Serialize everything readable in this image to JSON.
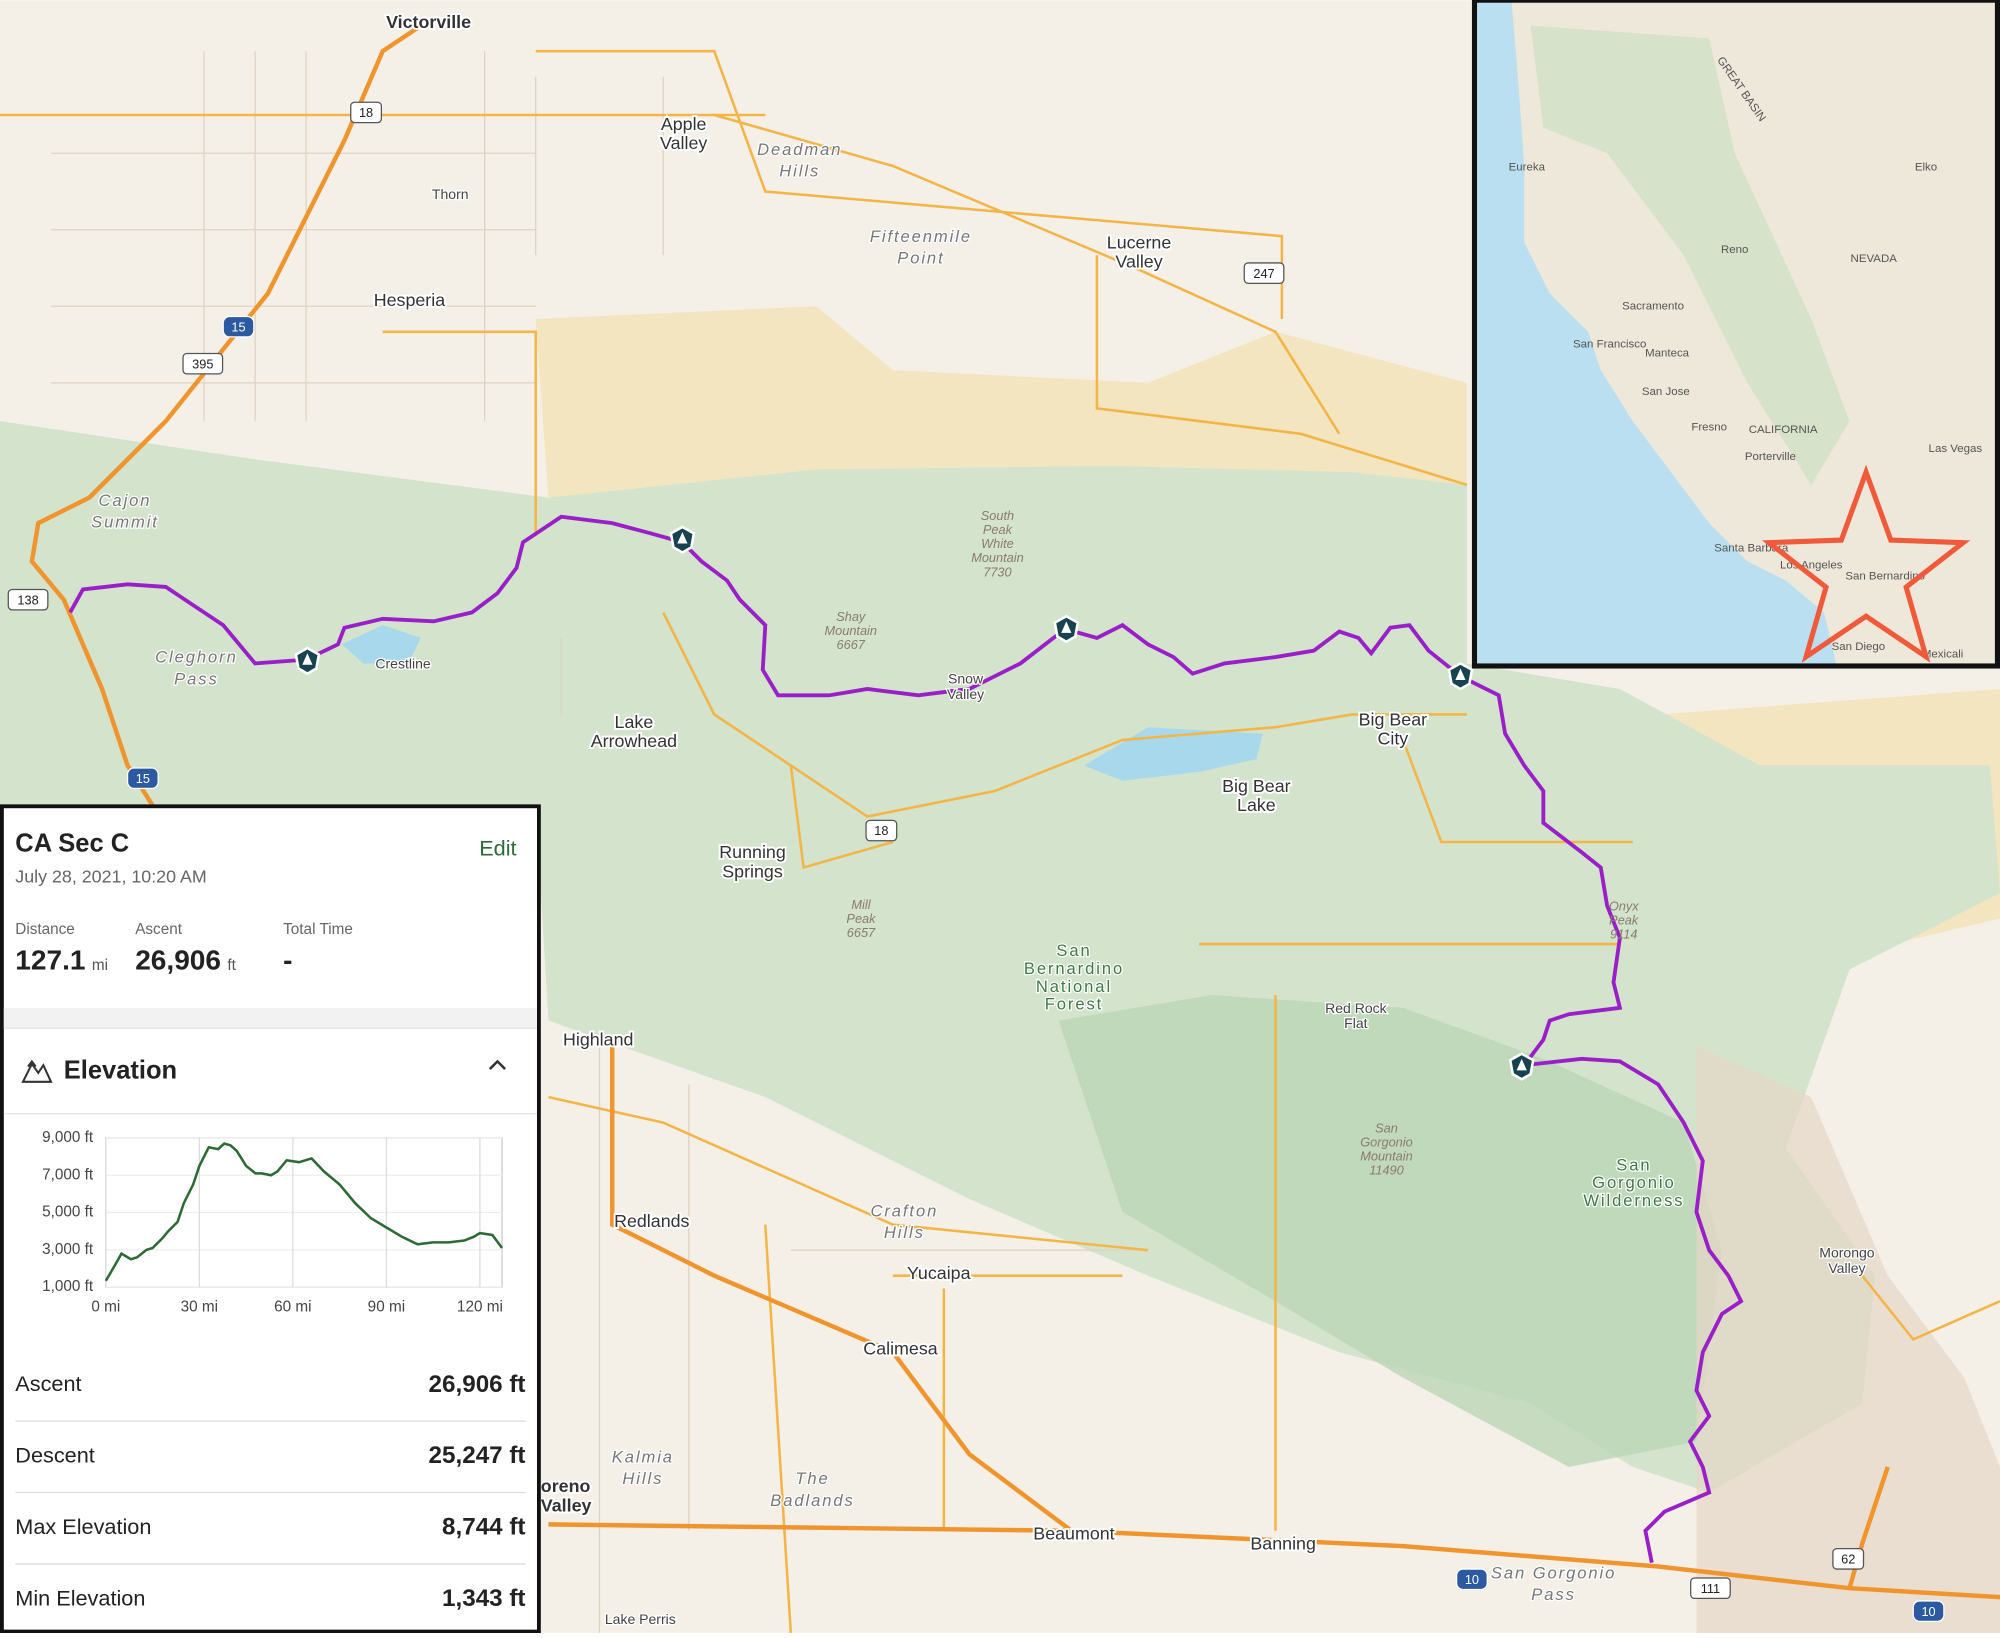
{
  "map": {
    "labels": [
      [
        "Victorville"
      ],
      [
        "Apple",
        "Valley"
      ],
      [
        "Deadman",
        "Hills"
      ],
      [
        "Thorn"
      ],
      [
        "Hesperia"
      ],
      [
        "Fifteenmile",
        "Point"
      ],
      [
        "Lucerne",
        "Valley"
      ],
      [
        "Cajon",
        "Summit"
      ],
      [
        "Cleghorn",
        "Pass"
      ],
      [
        "Crestline"
      ],
      [
        "Lake",
        "Arrowhead"
      ],
      [
        "Snow",
        "Valley"
      ],
      [
        "South",
        "Peak",
        "White",
        "Mountain",
        "7730"
      ],
      [
        "Shay",
        "Mountain",
        "6667"
      ],
      [
        "Big Bear",
        "City"
      ],
      [
        "Big Bear",
        "Lake"
      ],
      [
        "Running",
        "Springs"
      ],
      [
        "Mill",
        "Peak",
        "6657"
      ],
      [
        "San",
        "Bernardino",
        "National",
        "Forest"
      ],
      [
        "Onyx",
        "Peak",
        "9114"
      ],
      [
        "Red Rock",
        "Flat"
      ],
      [
        "Highland"
      ],
      [
        "Redlands"
      ],
      [
        "Crafton",
        "Hills"
      ],
      [
        "Yucaipa"
      ],
      [
        "Calimesa"
      ],
      [
        "San",
        "Gorgonio",
        "Mountain",
        "11490"
      ],
      [
        "San",
        "Gorgonio",
        "Wilderness"
      ],
      [
        "Morongo",
        "Valley"
      ],
      [
        "Kalmia",
        "Hills"
      ],
      [
        "The",
        "Badlands"
      ],
      [
        "oreno",
        "Valley"
      ],
      [
        "Beaumont"
      ],
      [
        "Banning"
      ],
      [
        "San Gorgonio",
        "Pass"
      ],
      [
        "Lake Perris"
      ]
    ],
    "route_shields": [
      "18",
      "395",
      "15",
      "138",
      "247",
      "18",
      "15",
      "10",
      "111",
      "62",
      "10"
    ],
    "inset": {
      "labels": [
        "Eureka",
        "Sacramento",
        "San Francisco",
        "Manteca",
        "San Jose",
        "Fresno",
        "CALIFORNIA",
        "Porterville",
        "Reno",
        "NEVADA",
        "Elko",
        "Las Vegas",
        "Santa Barbara",
        "Los Angeles",
        "San Bernardino",
        "San Diego",
        "Mexicali",
        "GREAT BASIN"
      ]
    }
  },
  "panel": {
    "title": "CA Sec C",
    "edit": "Edit",
    "date": "July 28, 2021, 10:20 AM",
    "summary": [
      {
        "label": "Distance",
        "value": "127.1",
        "unit": "mi"
      },
      {
        "label": "Ascent",
        "value": "26,906",
        "unit": "ft"
      },
      {
        "label": "Total Time",
        "value": "-"
      }
    ],
    "elevation": {
      "title": "Elevation",
      "chart": {
        "type": "line",
        "color": "#2d6a35",
        "x": [
          0,
          3,
          5,
          8,
          10,
          13,
          15,
          18,
          20,
          23,
          25,
          28,
          30,
          33,
          36,
          38,
          40,
          42,
          45,
          48,
          50,
          53,
          55,
          58,
          62,
          66,
          70,
          75,
          80,
          85,
          90,
          95,
          100,
          105,
          110,
          115,
          118,
          120,
          124,
          127.1
        ],
        "values": [
          1343,
          2200,
          2800,
          2500,
          2600,
          3000,
          3100,
          3600,
          4000,
          4500,
          5500,
          6500,
          7500,
          8500,
          8400,
          8700,
          8600,
          8300,
          7500,
          7100,
          7100,
          7000,
          7200,
          7800,
          7700,
          7900,
          7200,
          6500,
          5500,
          4700,
          4200,
          3700,
          3300,
          3400,
          3400,
          3500,
          3700,
          3900,
          3800,
          3100
        ],
        "xlim": [
          0,
          127.1
        ],
        "ylim": [
          1000,
          9000
        ],
        "xticks": [
          {
            "value": 0,
            "label": "0 mi"
          },
          {
            "value": 30,
            "label": "30 mi"
          },
          {
            "value": 60,
            "label": "60 mi"
          },
          {
            "value": 90,
            "label": "90 mi"
          },
          {
            "value": 120,
            "label": "120 mi"
          }
        ],
        "yticks": [
          {
            "value": 9000,
            "label": "9,000 ft"
          },
          {
            "value": 7000,
            "label": "7,000 ft"
          },
          {
            "value": 5000,
            "label": "5,000 ft"
          },
          {
            "value": 3000,
            "label": "3,000 ft"
          },
          {
            "value": 1000,
            "label": "1,000 ft"
          }
        ]
      }
    },
    "stats": [
      {
        "label": "Ascent",
        "value": "26,906 ft"
      },
      {
        "label": "Descent",
        "value": "25,247 ft"
      },
      {
        "label": "Max Elevation",
        "value": "8,744 ft"
      },
      {
        "label": "Min Elevation",
        "value": "1,343 ft"
      }
    ]
  }
}
